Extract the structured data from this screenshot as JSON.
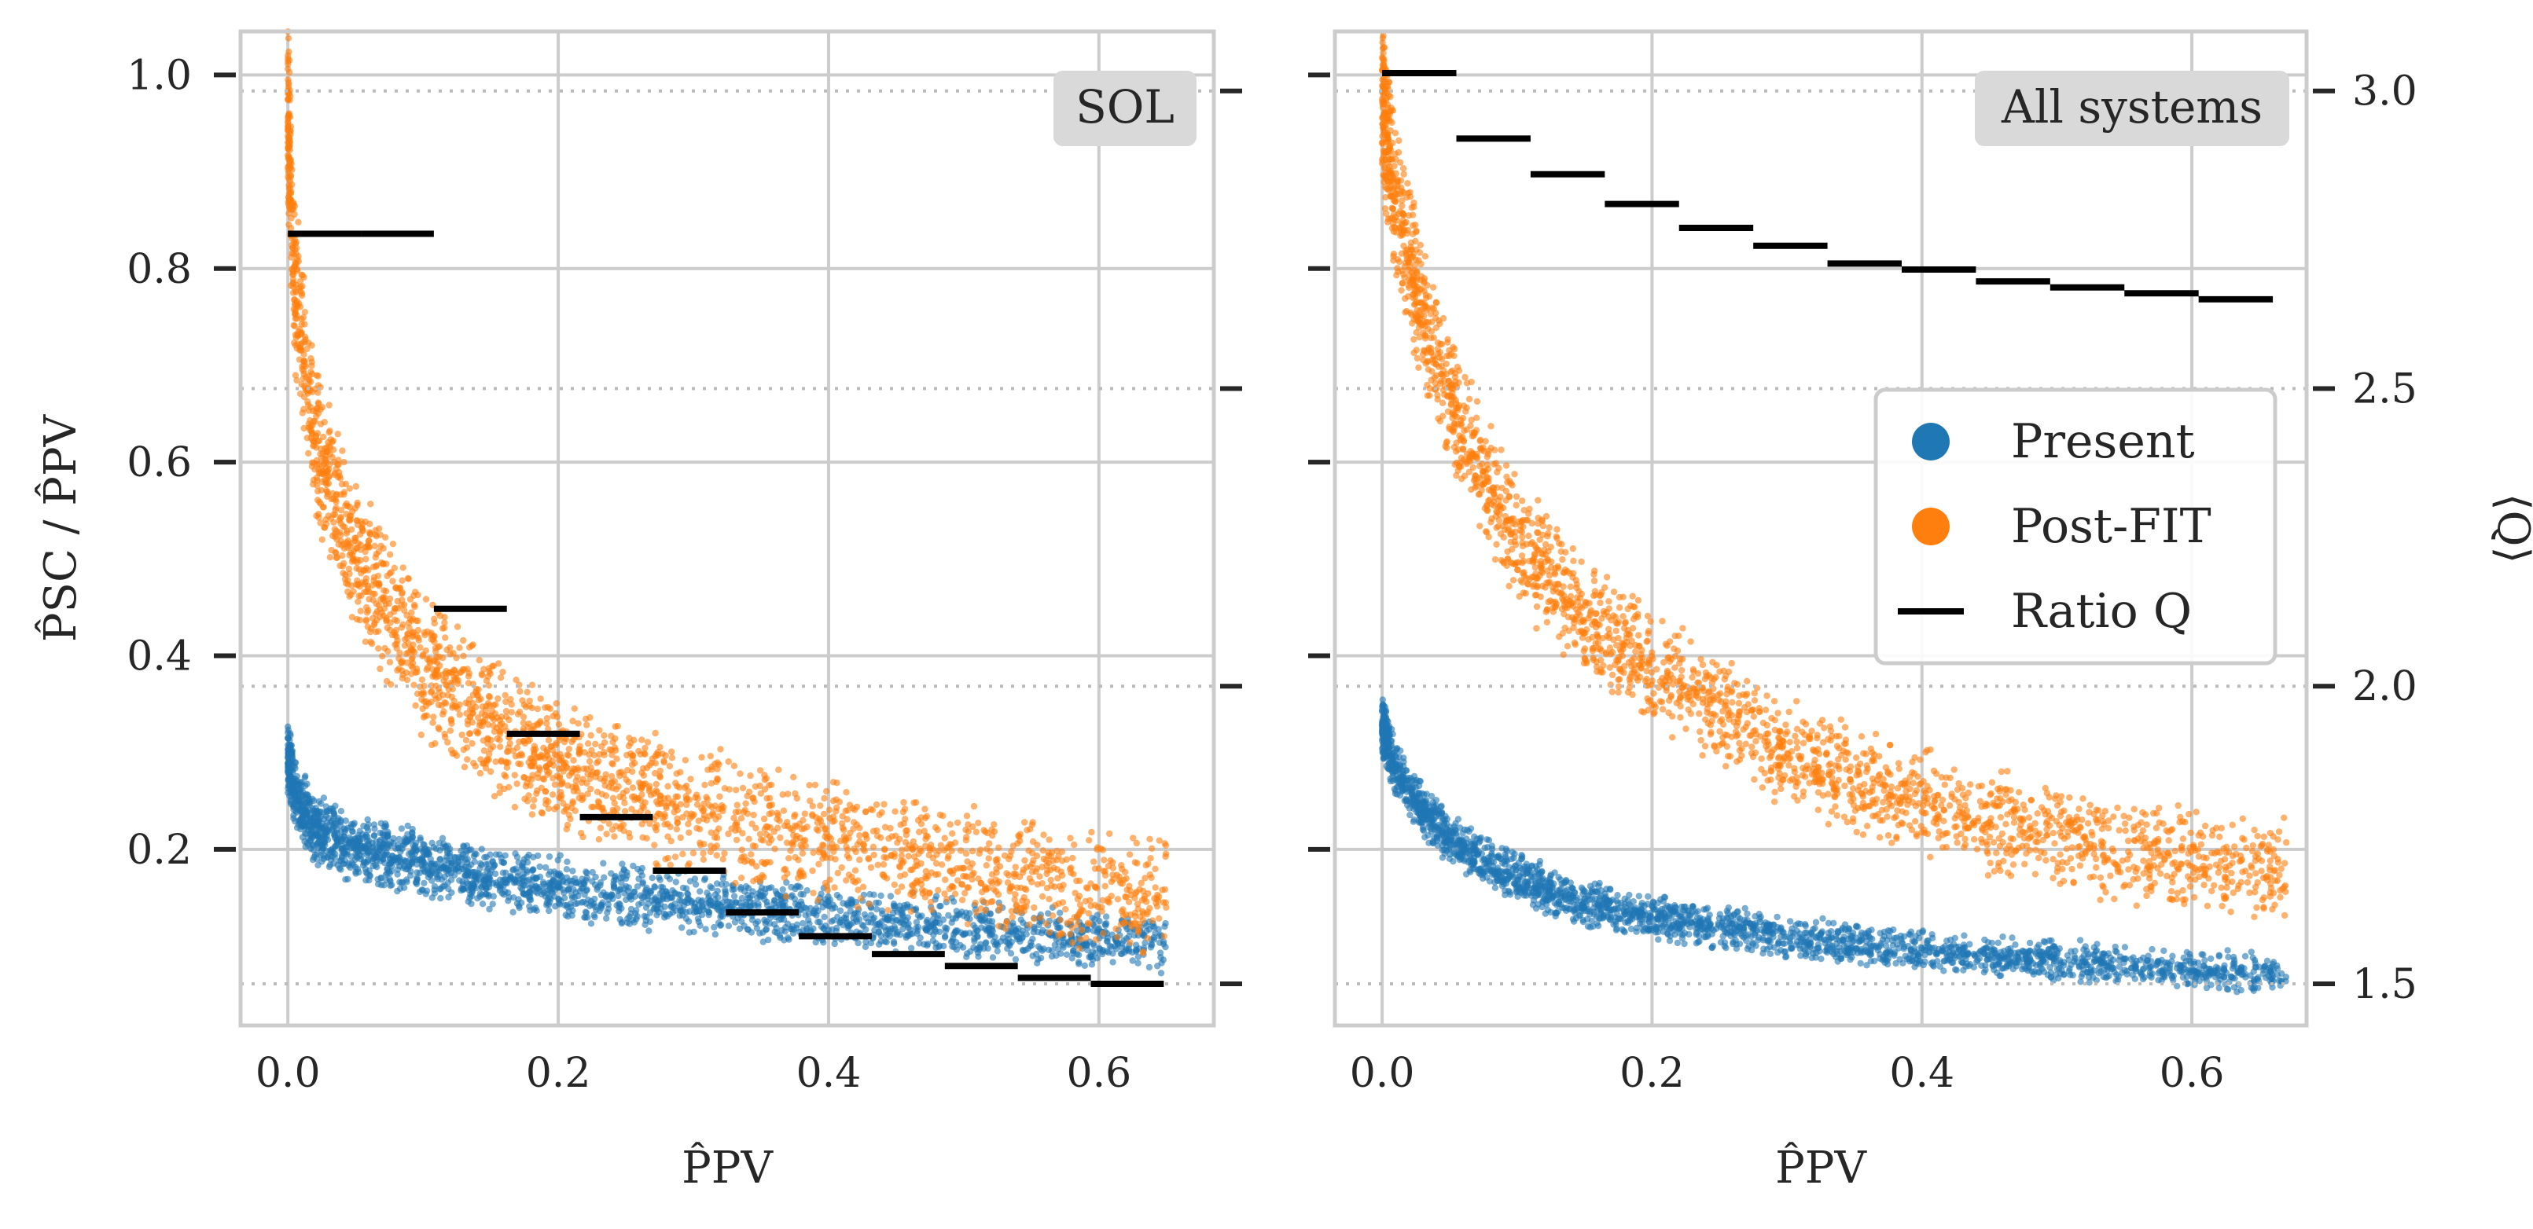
{
  "figure": {
    "panels": [
      {
        "tag": "SOL",
        "xlabel": "P̂PV",
        "ylabel": "P̂SC / P̂PV"
      },
      {
        "tag": "All systems",
        "xlabel": "P̂PV",
        "ylabel_right": "⟨Q⟩"
      }
    ],
    "legend": {
      "entries": [
        {
          "label": "Present",
          "color": "#1f77b4",
          "marker": "dot"
        },
        {
          "label": "Post-FIT",
          "color": "#ff7f0e",
          "marker": "dot"
        },
        {
          "label": "Ratio Q",
          "color": "#000000",
          "marker": "line"
        }
      ]
    }
  },
  "chart_data": [
    {
      "type": "scatter",
      "panel_tag": "SOL",
      "xlabel": "P̂PV",
      "ylabel": "P̂SC / P̂PV",
      "xlim": [
        -0.035,
        0.685
      ],
      "ylim": [
        0.018,
        1.045
      ],
      "xticks": [
        0.0,
        0.2,
        0.4,
        0.6
      ],
      "xtick_labels": [
        "0.0",
        "0.2",
        "0.4",
        "0.6"
      ],
      "yticks": [
        0.2,
        0.4,
        0.6,
        0.8,
        1.0
      ],
      "ytick_labels": [
        "0.2",
        "0.4",
        "0.6",
        "0.8",
        "1.0"
      ],
      "grid": true,
      "series": [
        {
          "name": "Present",
          "color": "#1f77b4",
          "x": [
            0.0,
            0.005,
            0.02,
            0.05,
            0.1,
            0.15,
            0.2,
            0.3,
            0.4,
            0.5,
            0.6,
            0.65
          ],
          "y": [
            0.3,
            0.26,
            0.22,
            0.2,
            0.185,
            0.17,
            0.16,
            0.145,
            0.13,
            0.12,
            0.105,
            0.1
          ],
          "spread": 0.045
        },
        {
          "name": "Post-FIT",
          "color": "#ff7f0e",
          "x": [
            0.0,
            0.005,
            0.02,
            0.05,
            0.1,
            0.15,
            0.2,
            0.3,
            0.4,
            0.5,
            0.6,
            0.65
          ],
          "y": [
            0.96,
            0.78,
            0.62,
            0.5,
            0.39,
            0.33,
            0.29,
            0.24,
            0.21,
            0.18,
            0.16,
            0.15
          ],
          "spread": 0.11
        }
      ],
      "ratio_q": {
        "name": "Ratio Q",
        "x_start": [
          0.0,
          0.054,
          0.108,
          0.162,
          0.216,
          0.27,
          0.324,
          0.378,
          0.432,
          0.486,
          0.54,
          0.594
        ],
        "x_end": [
          0.054,
          0.108,
          0.162,
          0.216,
          0.27,
          0.324,
          0.378,
          0.432,
          0.486,
          0.54,
          0.594,
          0.648
        ],
        "q": [
          2.76,
          2.76,
          2.13,
          1.92,
          1.78,
          1.69,
          1.62,
          1.58,
          1.55,
          1.53,
          1.51,
          1.5
        ]
      }
    },
    {
      "type": "scatter",
      "panel_tag": "All systems",
      "xlabel": "P̂PV",
      "ylabel_right": "⟨Q⟩",
      "xlim": [
        -0.035,
        0.685
      ],
      "ylim": [
        0.018,
        1.045
      ],
      "xticks": [
        0.0,
        0.2,
        0.4,
        0.6
      ],
      "xtick_labels": [
        "0.0",
        "0.2",
        "0.4",
        "0.6"
      ],
      "y2lim": [
        1.43,
        3.1
      ],
      "y2ticks": [
        1.5,
        2.0,
        2.5,
        3.0
      ],
      "y2tick_labels": [
        "1.5",
        "2.0",
        "2.5",
        "3.0"
      ],
      "grid": true,
      "series": [
        {
          "name": "Present",
          "color": "#1f77b4",
          "x": [
            0.0,
            0.01,
            0.03,
            0.06,
            0.1,
            0.15,
            0.2,
            0.3,
            0.4,
            0.5,
            0.6,
            0.67
          ],
          "y": [
            0.33,
            0.28,
            0.24,
            0.2,
            0.17,
            0.145,
            0.13,
            0.11,
            0.095,
            0.085,
            0.075,
            0.07
          ],
          "spread": 0.035
        },
        {
          "name": "Post-FIT",
          "color": "#ff7f0e",
          "x": [
            0.0,
            0.01,
            0.03,
            0.06,
            0.1,
            0.15,
            0.2,
            0.3,
            0.4,
            0.5,
            0.6,
            0.67
          ],
          "y": [
            0.97,
            0.87,
            0.75,
            0.63,
            0.52,
            0.44,
            0.39,
            0.3,
            0.25,
            0.21,
            0.19,
            0.18
          ],
          "spread": 0.09
        }
      ],
      "ratio_q": {
        "name": "Ratio Q",
        "x_start": [
          0.0,
          0.055,
          0.11,
          0.165,
          0.22,
          0.275,
          0.33,
          0.385,
          0.44,
          0.495,
          0.55,
          0.605
        ],
        "x_end": [
          0.055,
          0.11,
          0.165,
          0.22,
          0.275,
          0.33,
          0.385,
          0.44,
          0.495,
          0.55,
          0.605,
          0.66
        ],
        "q": [
          3.03,
          2.92,
          2.86,
          2.81,
          2.77,
          2.74,
          2.71,
          2.7,
          2.68,
          2.67,
          2.66,
          2.65
        ]
      }
    }
  ]
}
